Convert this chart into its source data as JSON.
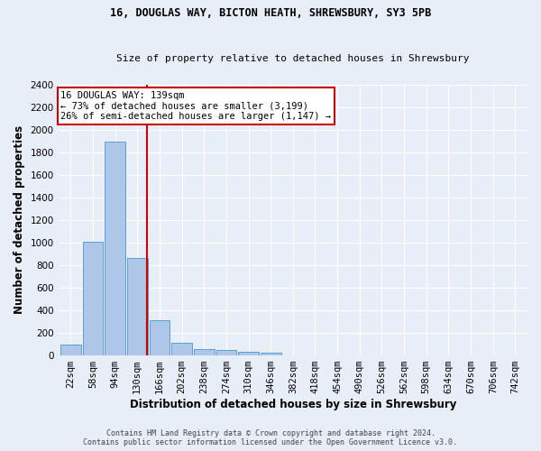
{
  "title1": "16, DOUGLAS WAY, BICTON HEATH, SHREWSBURY, SY3 5PB",
  "title2": "Size of property relative to detached houses in Shrewsbury",
  "xlabel": "Distribution of detached houses by size in Shrewsbury",
  "ylabel": "Number of detached properties",
  "bin_labels": [
    "22sqm",
    "58sqm",
    "94sqm",
    "130sqm",
    "166sqm",
    "202sqm",
    "238sqm",
    "274sqm",
    "310sqm",
    "346sqm",
    "382sqm",
    "418sqm",
    "454sqm",
    "490sqm",
    "526sqm",
    "562sqm",
    "598sqm",
    "634sqm",
    "670sqm",
    "706sqm",
    "742sqm"
  ],
  "bar_values": [
    95,
    1010,
    1890,
    860,
    315,
    115,
    58,
    48,
    30,
    22,
    0,
    0,
    0,
    0,
    0,
    0,
    0,
    0,
    0,
    0,
    0
  ],
  "bar_color": "#aec6e8",
  "bar_edge_color": "#5a9fd4",
  "vline_x": 3.42,
  "annotation_line1": "16 DOUGLAS WAY: 139sqm",
  "annotation_line2": "← 73% of detached houses are smaller (3,199)",
  "annotation_line3": "26% of semi-detached houses are larger (1,147) →",
  "annotation_box_color": "#ffffff",
  "annotation_box_edge_color": "#cc0000",
  "ylim": [
    0,
    2400
  ],
  "yticks": [
    0,
    200,
    400,
    600,
    800,
    1000,
    1200,
    1400,
    1600,
    1800,
    2000,
    2200,
    2400
  ],
  "footer1": "Contains HM Land Registry data © Crown copyright and database right 2024.",
  "footer2": "Contains public sector information licensed under the Open Government Licence v3.0.",
  "bg_color": "#e8eef8",
  "grid_color": "#ffffff",
  "vline_color": "#cc0000",
  "title1_fontsize": 8.5,
  "title2_fontsize": 8.0,
  "ylabel_fontsize": 8.5,
  "xlabel_fontsize": 8.5,
  "tick_fontsize": 7.5,
  "annot_fontsize": 7.5,
  "footer_fontsize": 6.0
}
